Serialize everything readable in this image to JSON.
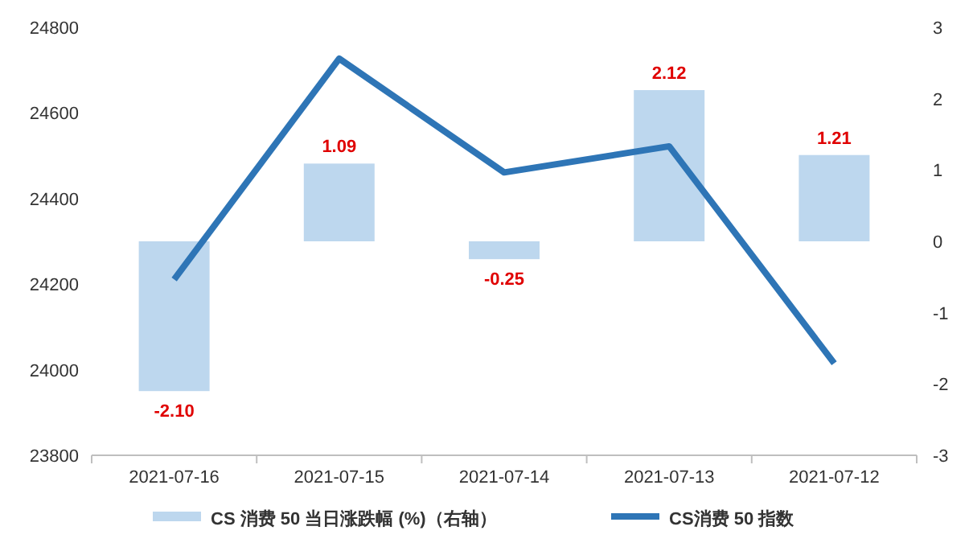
{
  "chart_data": {
    "type": "bar",
    "categories": [
      "2021-07-16",
      "2021-07-15",
      "2021-07-14",
      "2021-07-13",
      "2021-07-12"
    ],
    "series": [
      {
        "name": "CS 消费 50 当日涨跌幅 (%)（右轴）",
        "axis": "y2",
        "color": "#bdd7ee",
        "values": [
          -2.1,
          1.09,
          -0.25,
          2.12,
          1.21
        ],
        "value_labels": [
          "-2.10",
          "1.09",
          "-0.25",
          "2.12",
          "1.21"
        ]
      },
      {
        "name": "CS消费 50 指数",
        "type": "line",
        "color": "#2e75b6",
        "values": [
          24211,
          24727,
          24461,
          24522,
          24015
        ]
      }
    ],
    "ylim": [
      23800,
      24800
    ],
    "yticks": [
      23800,
      24000,
      24200,
      24400,
      24600,
      24800
    ],
    "y2lim": [
      -3,
      3
    ],
    "y2ticks": [
      -3,
      -2,
      -1,
      0,
      1,
      2,
      3
    ],
    "legend": "bottom",
    "grid": false,
    "marker": "none",
    "line_style": "solid"
  }
}
